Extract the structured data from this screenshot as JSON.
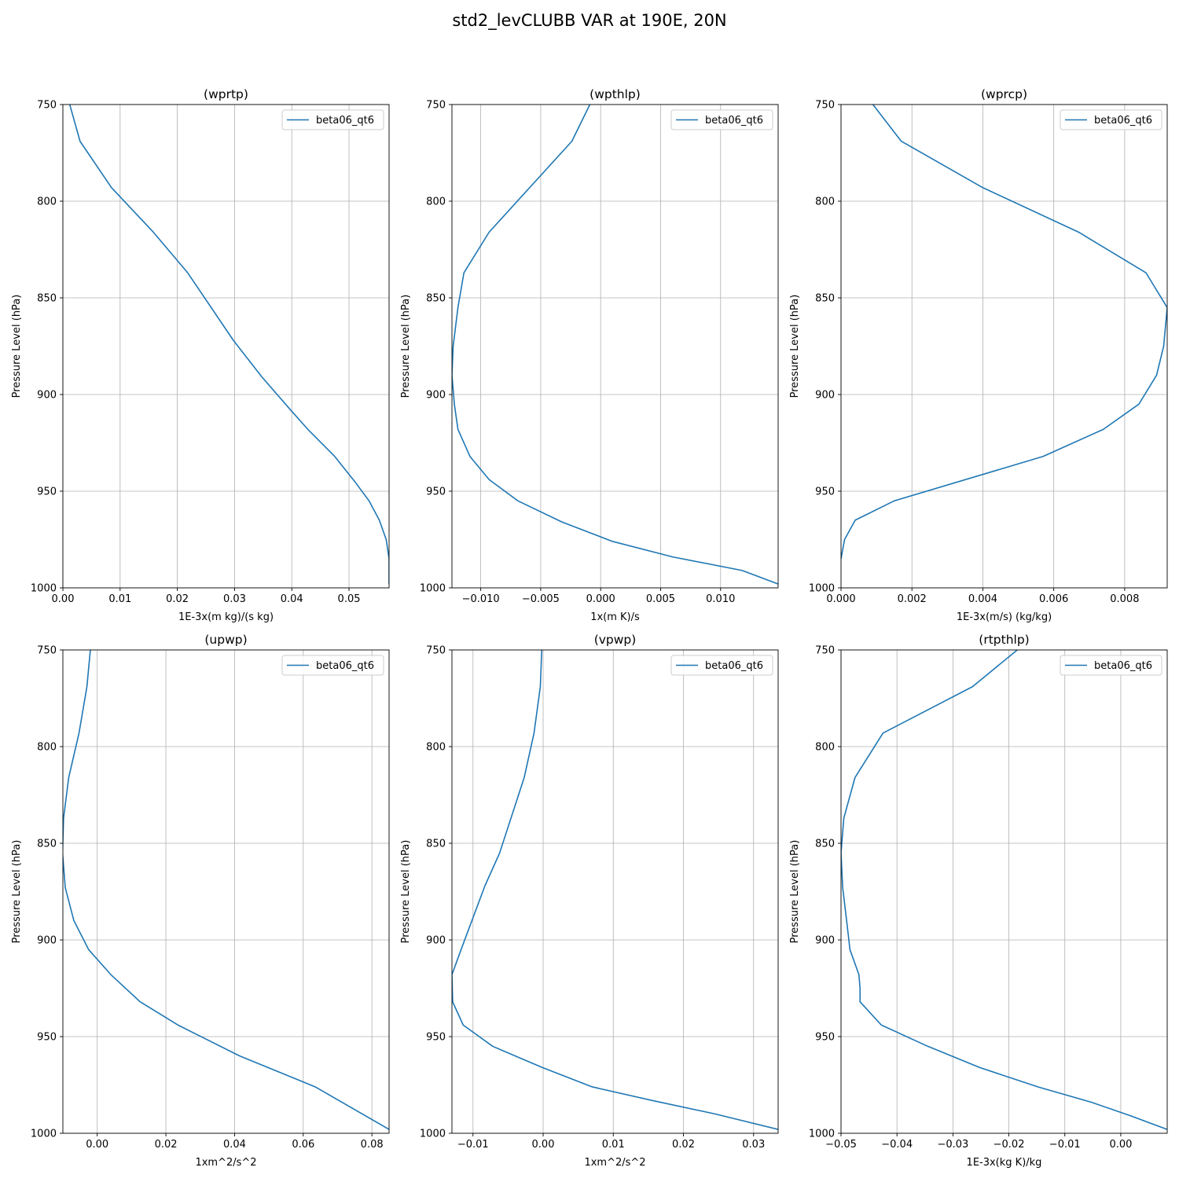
{
  "figure": {
    "title": "std2_levCLUBB VAR at 190E, 20N",
    "line_color": "#1f77b4"
  },
  "chart_data": [
    {
      "type": "line",
      "title": "(wprtp)",
      "xlabel": "1E-3x(m kg)/(s kg)",
      "ylabel": "Pressure Level (hPa)",
      "xlim": [
        0.0,
        0.057
      ],
      "ylim": [
        1000,
        750
      ],
      "xticks": [
        0.0,
        0.01,
        0.02,
        0.03,
        0.04,
        0.05
      ],
      "xtick_labels": [
        "0.00",
        "0.01",
        "0.02",
        "0.03",
        "0.04",
        "0.05"
      ],
      "yticks": [
        750,
        800,
        850,
        900,
        950,
        1000
      ],
      "ytick_labels": [
        "750",
        "800",
        "850",
        "900",
        "950",
        "1000"
      ],
      "grid": true,
      "legend_position": "top-right",
      "series": [
        {
          "name": "beta06_qt6",
          "x": [
            0.0012,
            0.003,
            0.0085,
            0.0158,
            0.0218,
            0.0298,
            0.0348,
            0.0398,
            0.0428,
            0.0475,
            0.051,
            0.0535,
            0.0553,
            0.0565,
            0.057,
            0.057
          ],
          "y": [
            750,
            769,
            793,
            816,
            837,
            872,
            891,
            908,
            918,
            932,
            945,
            955,
            965,
            975,
            985,
            998
          ]
        }
      ]
    },
    {
      "type": "line",
      "title": "(wpthlp)",
      "xlabel": "1x(m K)/s",
      "ylabel": "Pressure Level (hPa)",
      "xlim": [
        -0.0124,
        0.0148
      ],
      "ylim": [
        1000,
        750
      ],
      "xticks": [
        -0.01,
        -0.005,
        0.0,
        0.005,
        0.01
      ],
      "xtick_labels": [
        "−0.010",
        "−0.005",
        "0.000",
        "0.005",
        "0.010"
      ],
      "yticks": [
        750,
        800,
        850,
        900,
        950,
        1000
      ],
      "ytick_labels": [
        "750",
        "800",
        "850",
        "900",
        "950",
        "1000"
      ],
      "grid": true,
      "legend_position": "top-right",
      "series": [
        {
          "name": "beta06_qt6",
          "x": [
            -0.0009,
            -0.0024,
            -0.0093,
            -0.0114,
            -0.0119,
            -0.0123,
            -0.0124,
            -0.0122,
            -0.0119,
            -0.0109,
            -0.0093,
            -0.0069,
            -0.0032,
            0.001,
            0.006,
            0.0118,
            0.0148
          ],
          "y": [
            750,
            769,
            816,
            837,
            855,
            875,
            890,
            905,
            918,
            932,
            944,
            955,
            966,
            976,
            984,
            991,
            998
          ]
        }
      ]
    },
    {
      "type": "line",
      "title": "(wprcp)",
      "xlabel": "1E-3x(m/s) (kg/kg)",
      "ylabel": "Pressure Level (hPa)",
      "xlim": [
        0.0,
        0.0092
      ],
      "ylim": [
        1000,
        750
      ],
      "xticks": [
        0.0,
        0.002,
        0.004,
        0.006,
        0.008
      ],
      "xtick_labels": [
        "0.000",
        "0.002",
        "0.004",
        "0.006",
        "0.008"
      ],
      "yticks": [
        750,
        800,
        850,
        900,
        950,
        1000
      ],
      "ytick_labels": [
        "750",
        "800",
        "850",
        "900",
        "950",
        "1000"
      ],
      "grid": true,
      "legend_position": "top-right",
      "series": [
        {
          "name": "beta06_qt6",
          "x": [
            0.0009,
            0.0017,
            0.004,
            0.0067,
            0.0086,
            0.0092,
            0.0091,
            0.0089,
            0.0084,
            0.0074,
            0.0057,
            0.0015,
            0.0004,
            0.0001,
            0.0
          ],
          "y": [
            750,
            769,
            793,
            816,
            837,
            855,
            875,
            890,
            905,
            918,
            932,
            955,
            965,
            975,
            985
          ]
        }
      ]
    },
    {
      "type": "line",
      "title": "(upwp)",
      "xlabel": "1xm^2/s^2",
      "ylabel": "Pressure Level (hPa)",
      "xlim": [
        -0.01,
        0.085
      ],
      "ylim": [
        1000,
        750
      ],
      "xticks": [
        0.0,
        0.02,
        0.04,
        0.06,
        0.08
      ],
      "xtick_labels": [
        "0.00",
        "0.02",
        "0.04",
        "0.06",
        "0.08"
      ],
      "yticks": [
        750,
        800,
        850,
        900,
        950,
        1000
      ],
      "ytick_labels": [
        "750",
        "800",
        "850",
        "900",
        "950",
        "1000"
      ],
      "grid": true,
      "legend_position": "top-right",
      "series": [
        {
          "name": "beta06_qt6",
          "x": [
            -0.002,
            -0.003,
            -0.0053,
            -0.0083,
            -0.0098,
            -0.0101,
            -0.0093,
            -0.0068,
            -0.0025,
            0.004,
            0.0125,
            0.0235,
            0.0415,
            0.0635,
            0.085
          ],
          "y": [
            750,
            769,
            793,
            816,
            837,
            855,
            873,
            890,
            905,
            918,
            932,
            944,
            960,
            976,
            998
          ]
        }
      ]
    },
    {
      "type": "line",
      "title": "(vpwp)",
      "xlabel": "1xm^2/s^2",
      "ylabel": "Pressure Level (hPa)",
      "xlim": [
        -0.013,
        0.0335
      ],
      "ylim": [
        1000,
        750
      ],
      "xticks": [
        -0.01,
        0.0,
        0.01,
        0.02,
        0.03
      ],
      "xtick_labels": [
        "−0.01",
        "0.00",
        "0.01",
        "0.02",
        "0.03"
      ],
      "yticks": [
        750,
        800,
        850,
        900,
        950,
        1000
      ],
      "ytick_labels": [
        "750",
        "800",
        "850",
        "900",
        "950",
        "1000"
      ],
      "grid": true,
      "legend_position": "top-right",
      "series": [
        {
          "name": "beta06_qt6",
          "x": [
            -0.0002,
            -0.0004,
            -0.0013,
            -0.0027,
            -0.0062,
            -0.0083,
            -0.0117,
            -0.013,
            -0.0129,
            -0.0114,
            -0.0072,
            -0.0001,
            0.007,
            0.0155,
            0.0245,
            0.0335
          ],
          "y": [
            750,
            769,
            793,
            816,
            855,
            872,
            905,
            918,
            932,
            944,
            955,
            966,
            976,
            983,
            990,
            998
          ]
        }
      ]
    },
    {
      "type": "line",
      "title": "(rtpthlp)",
      "xlabel": "1E-3x(kg K)/kg",
      "ylabel": "Pressure Level (hPa)",
      "xlim": [
        -0.05,
        0.0083
      ],
      "ylim": [
        1000,
        750
      ],
      "xticks": [
        -0.05,
        -0.04,
        -0.03,
        -0.02,
        -0.01,
        0.0
      ],
      "xtick_labels": [
        "−0.05",
        "−0.04",
        "−0.03",
        "−0.02",
        "−0.01",
        "0.00"
      ],
      "yticks": [
        750,
        800,
        850,
        900,
        950,
        1000
      ],
      "ytick_labels": [
        "750",
        "800",
        "850",
        "900",
        "950",
        "1000"
      ],
      "grid": true,
      "legend_position": "top-right",
      "series": [
        {
          "name": "beta06_qt6",
          "x": [
            -0.0185,
            -0.0265,
            -0.0425,
            -0.0475,
            -0.0495,
            -0.05,
            -0.0497,
            -0.049,
            -0.0484,
            -0.0468,
            -0.0466,
            -0.0466,
            -0.0428,
            -0.0345,
            -0.0252,
            -0.0148,
            -0.0052,
            0.0018,
            0.0083
          ],
          "y": [
            750,
            769,
            793,
            816,
            837,
            855,
            873,
            890,
            905,
            918,
            925,
            932,
            944,
            955,
            966,
            976,
            984,
            991,
            998
          ]
        }
      ]
    }
  ]
}
